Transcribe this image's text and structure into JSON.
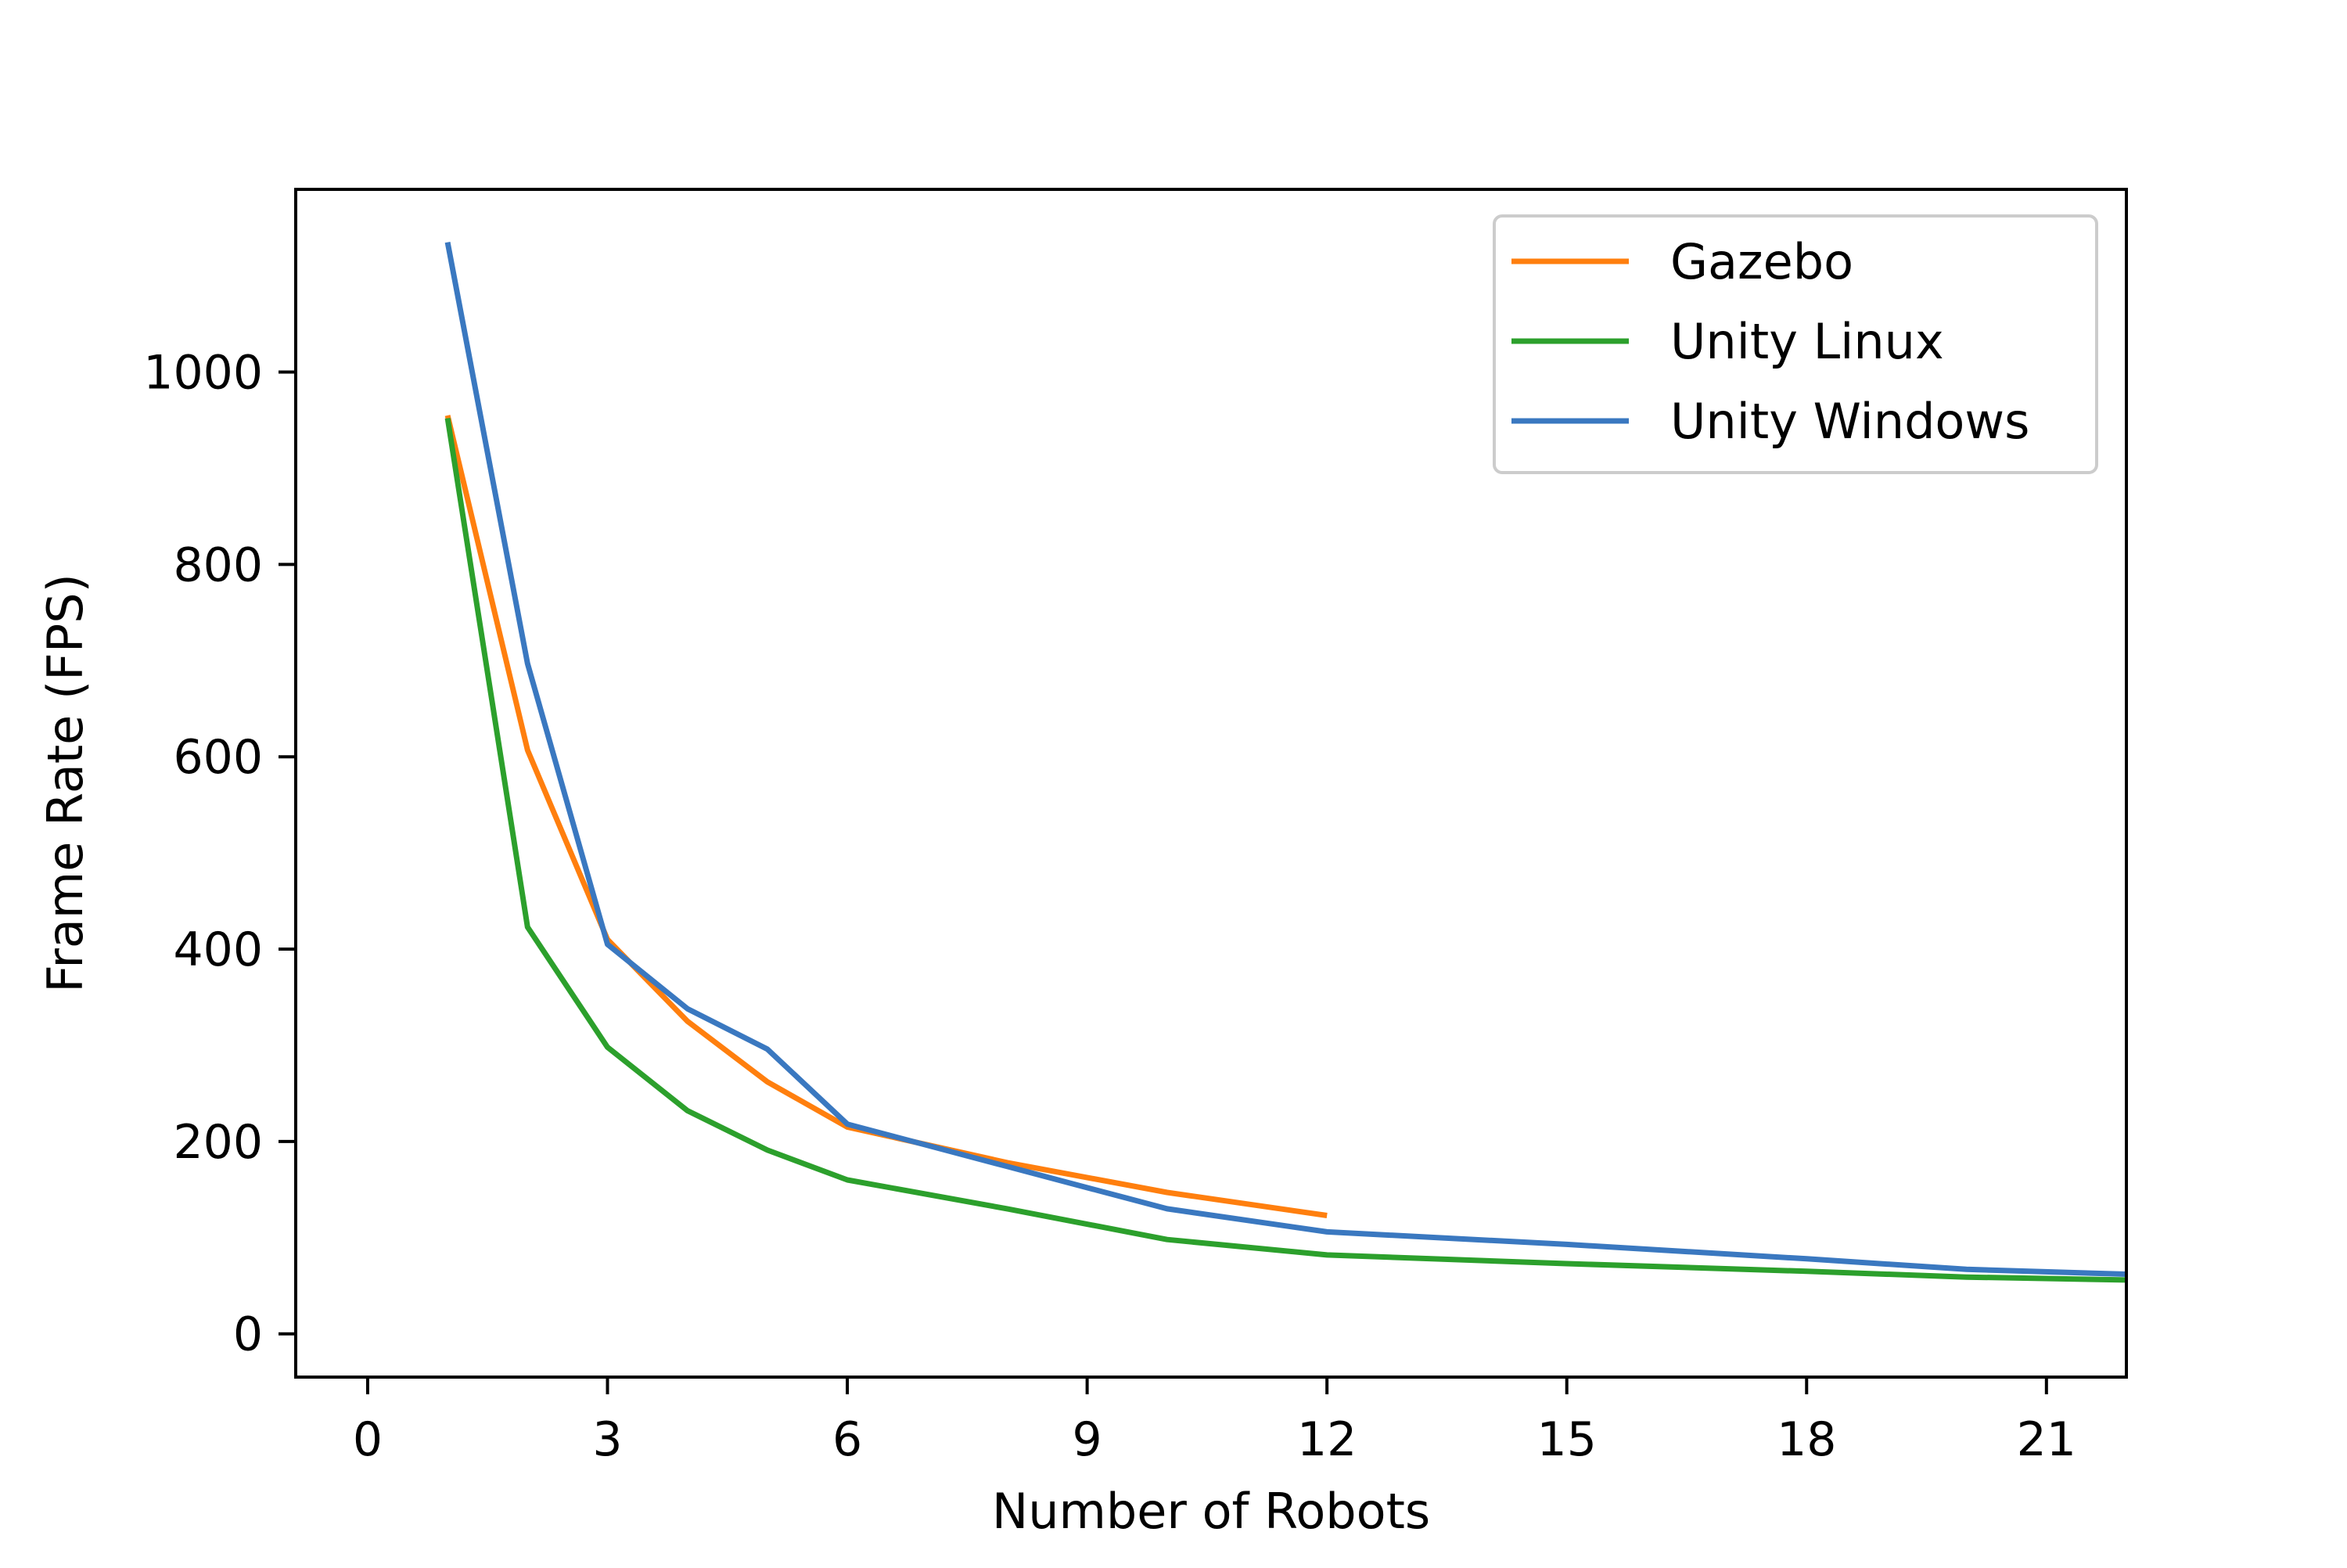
{
  "chart_data": {
    "type": "line",
    "title": "",
    "xlabel": "Number of Robots",
    "ylabel": "Frame Rate (FPS)",
    "xlim": [
      -0.9,
      22
    ],
    "ylim": [
      -45,
      1190
    ],
    "xticks": [
      0,
      3,
      6,
      9,
      12,
      15,
      18,
      21
    ],
    "yticks": [
      0,
      200,
      400,
      600,
      800,
      1000
    ],
    "grid": false,
    "legend_position": "top-right",
    "series": [
      {
        "name": "Gazebo",
        "color": "#ff7f0e",
        "x": [
          1,
          2,
          3,
          4,
          5,
          6,
          8,
          10,
          12
        ],
        "y": [
          955,
          607,
          410,
          325,
          262,
          215,
          178,
          147,
          123
        ]
      },
      {
        "name": "Unity Linux",
        "color": "#2ca02c",
        "x": [
          1,
          2,
          3,
          4,
          5,
          6,
          8,
          10,
          12,
          15,
          18,
          20,
          22
        ],
        "y": [
          952,
          423,
          298,
          232,
          191,
          160,
          130,
          98,
          82,
          73,
          65,
          59,
          56
        ]
      },
      {
        "name": "Unity Windows",
        "color": "#3a78c0",
        "x": [
          1,
          2,
          3,
          4,
          5,
          6,
          8,
          10,
          12,
          15,
          18,
          20,
          22
        ],
        "y": [
          1135,
          697,
          405,
          338,
          296,
          218,
          174,
          130,
          106,
          93,
          78,
          67,
          62
        ]
      }
    ]
  }
}
